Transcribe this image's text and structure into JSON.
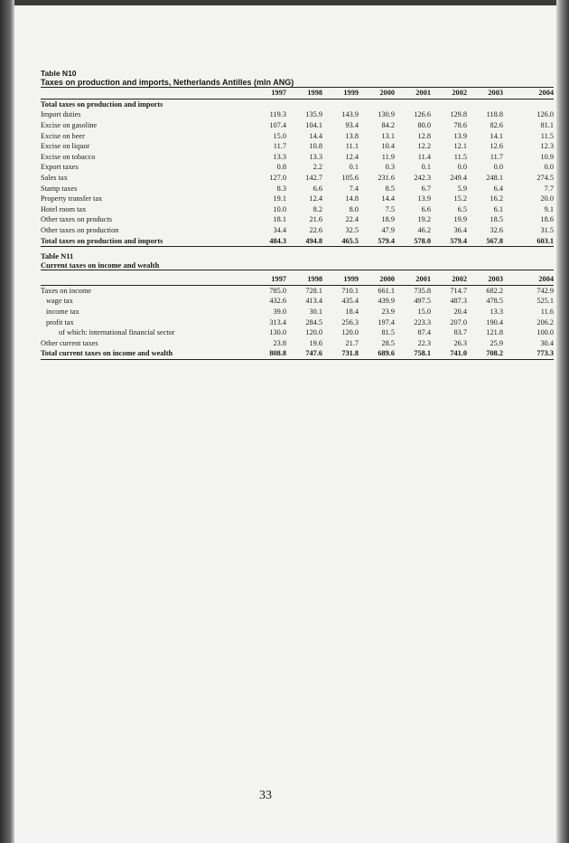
{
  "page_number": "33",
  "years": [
    "1997",
    "1998",
    "1999",
    "2000",
    "2001",
    "2002",
    "2003",
    "2004"
  ],
  "table_n10": {
    "number": "Table N10",
    "title": "Taxes on production and imports, Netherlands Antilles (mln ANG)",
    "section_heading": "Total taxes on production and imports",
    "rows": [
      {
        "label": "Import duties",
        "values": [
          "119.3",
          "135.9",
          "143.9",
          "130.9",
          "126.6",
          "129.8",
          "118.8",
          "126.0"
        ]
      },
      {
        "label": "Excise on gasoline",
        "values": [
          "107.4",
          "104.1",
          "93.4",
          "84.2",
          "80.0",
          "78.6",
          "82.6",
          "81.1"
        ]
      },
      {
        "label": "Excise on beer",
        "values": [
          "15.0",
          "14.4",
          "13.8",
          "13.1",
          "12.8",
          "13.9",
          "14.1",
          "11.5"
        ]
      },
      {
        "label": "Excise on liquor",
        "values": [
          "11.7",
          "10.8",
          "11.1",
          "10.4",
          "12.2",
          "12.1",
          "12.6",
          "12.3"
        ]
      },
      {
        "label": "Excise on tobacco",
        "values": [
          "13.3",
          "13.3",
          "12.4",
          "11.9",
          "11.4",
          "11.5",
          "11.7",
          "10.9"
        ]
      },
      {
        "label": "Export taxes",
        "values": [
          "0.8",
          "2.2",
          "0.1",
          "0.3",
          "0.1",
          "0.0",
          "0.0",
          "0.0"
        ]
      },
      {
        "label": "Sales tax",
        "values": [
          "127.0",
          "142.7",
          "105.6",
          "231.6",
          "242.3",
          "249.4",
          "248.1",
          "274.5"
        ]
      },
      {
        "label": "Stamp taxes",
        "values": [
          "8.3",
          "6.6",
          "7.4",
          "8.5",
          "6.7",
          "5.9",
          "6.4",
          "7.7"
        ]
      },
      {
        "label": "Property transfer tax",
        "values": [
          "19.1",
          "12.4",
          "14.8",
          "14.4",
          "13.9",
          "15.2",
          "16.2",
          "20.0"
        ]
      },
      {
        "label": "Hotel room tax",
        "values": [
          "10.0",
          "8.2",
          "8.0",
          "7.5",
          "6.6",
          "6.5",
          "6.1",
          "9.1"
        ]
      },
      {
        "label": "Other taxes on products",
        "values": [
          "18.1",
          "21.6",
          "22.4",
          "18.9",
          "19.2",
          "19.9",
          "18.5",
          "18.6"
        ]
      },
      {
        "label": "Other taxes on production",
        "values": [
          "34.4",
          "22.6",
          "32.5",
          "47.9",
          "46.2",
          "36.4",
          "32.6",
          "31.5"
        ]
      }
    ],
    "total": {
      "label": "Total taxes on production and imports",
      "values": [
        "484.3",
        "494.8",
        "465.5",
        "579.4",
        "578.0",
        "579.4",
        "567.8",
        "603.1"
      ]
    }
  },
  "table_n11": {
    "number": "Table N11",
    "title": "Current taxes on income and wealth",
    "rows": [
      {
        "label": "Taxes on income",
        "indent": 0,
        "values": [
          "785.0",
          "728.1",
          "710.1",
          "661.1",
          "735.8",
          "714.7",
          "682.2",
          "742.9"
        ]
      },
      {
        "label": "wage tax",
        "indent": 1,
        "values": [
          "432.6",
          "413.4",
          "435.4",
          "439.9",
          "497.5",
          "487.3",
          "478.5",
          "525.1"
        ]
      },
      {
        "label": "income tax",
        "indent": 1,
        "values": [
          "39.0",
          "30.1",
          "18.4",
          "23.9",
          "15.0",
          "20.4",
          "13.3",
          "11.6"
        ]
      },
      {
        "label": "profit tax",
        "indent": 1,
        "values": [
          "313.4",
          "284.5",
          "256.3",
          "197.4",
          "223.3",
          "207.0",
          "190.4",
          "206.2"
        ]
      },
      {
        "label": "of which: international financial sector",
        "indent": 2,
        "values": [
          "130.0",
          "120.0",
          "120.0",
          "81.5",
          "87.4",
          "83.7",
          "121.8",
          "100.0"
        ]
      },
      {
        "label": "Other current taxes",
        "indent": 0,
        "values": [
          "23.8",
          "19.6",
          "21.7",
          "28.5",
          "22.3",
          "26.3",
          "25.9",
          "30.4"
        ]
      }
    ],
    "total": {
      "label": "Total current taxes on income and wealth",
      "values": [
        "808.8",
        "747.6",
        "731.8",
        "689.6",
        "758.1",
        "741.0",
        "708.2",
        "773.3"
      ]
    }
  }
}
